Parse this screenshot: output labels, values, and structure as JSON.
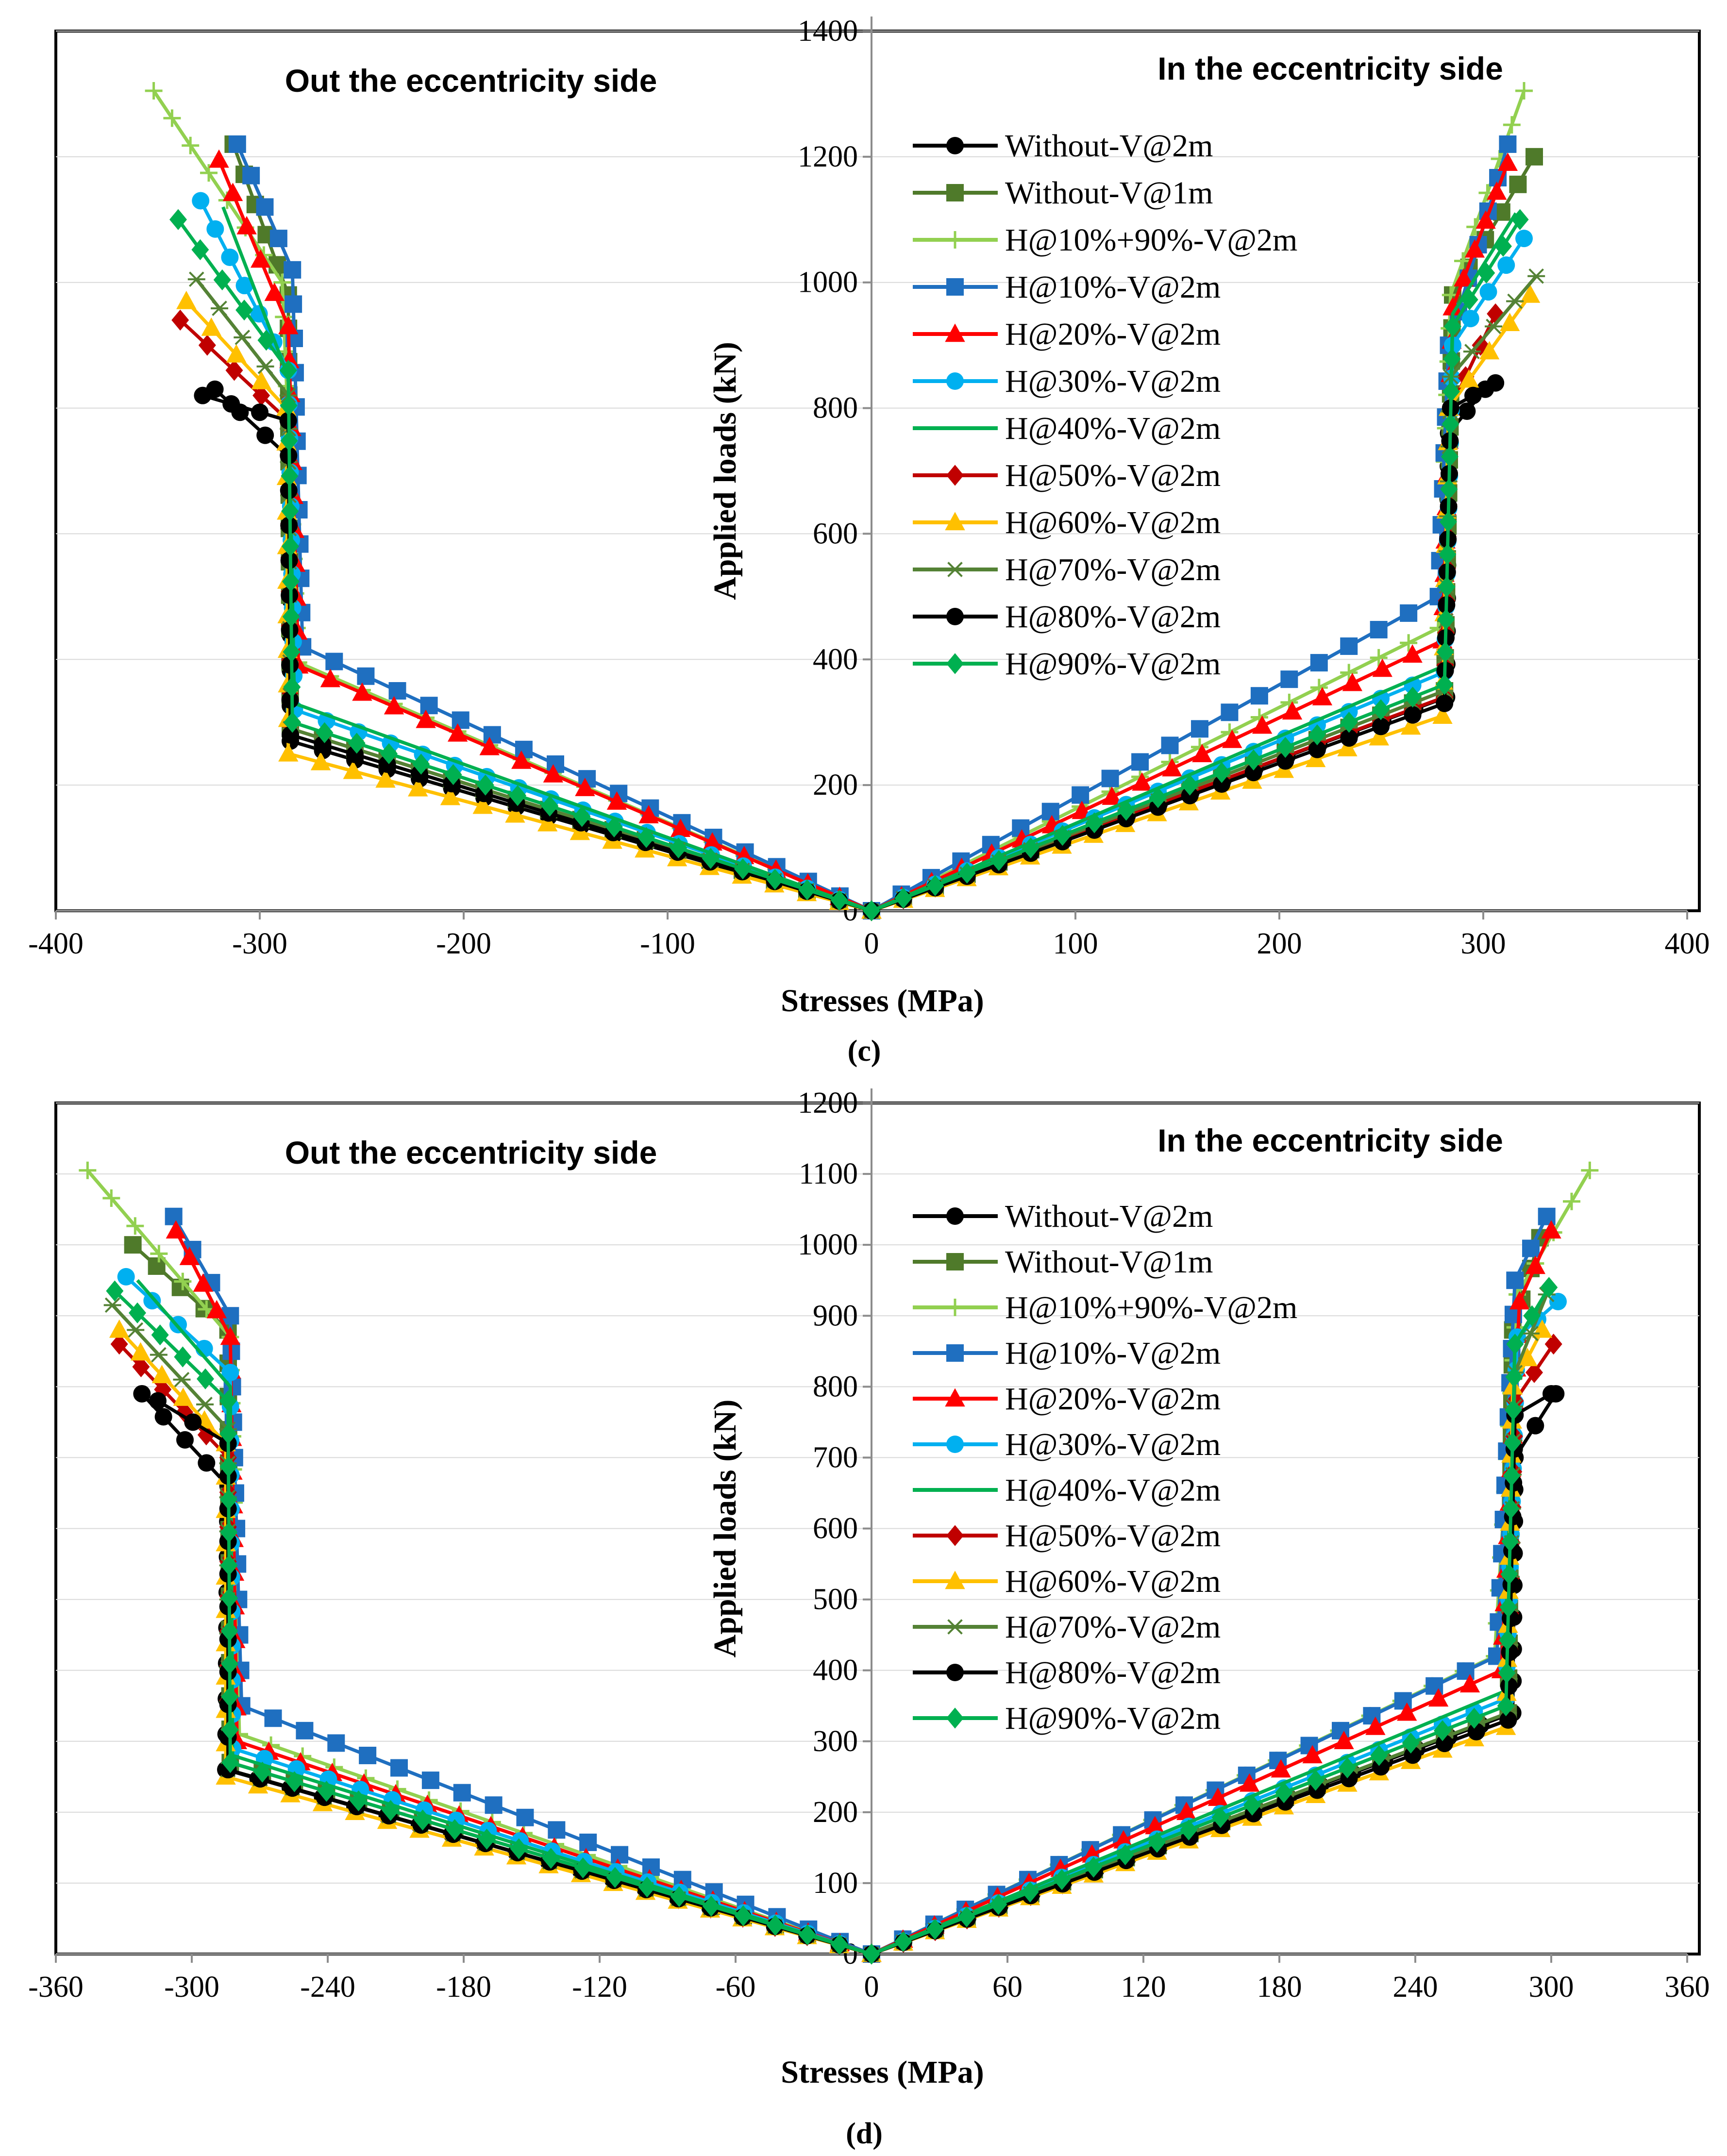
{
  "chart_data": [
    {
      "panel_label": "(c)",
      "type": "line",
      "xlabel": "Stresses (MPa)",
      "ylabel": "Applied loads (kN)",
      "xlim": [
        -400,
        400
      ],
      "ylim": [
        0,
        1400
      ],
      "xticks": [
        -400,
        -300,
        -200,
        -100,
        0,
        100,
        200,
        300,
        400
      ],
      "yticks": [
        0,
        200,
        400,
        600,
        800,
        1000,
        1200,
        1400
      ],
      "left_label": "Out the eccentricity side",
      "right_label": "In the eccentricity side",
      "legend_position": "right",
      "series": [
        {
          "name": "Without-V@2m",
          "color": "#000000",
          "marker": "circle",
          "left": [
            [
              0,
              0
            ],
            [
              -285,
              270
            ],
            [
              -285,
              720
            ],
            [
              -322,
              830
            ]
          ],
          "right": [
            [
              0,
              0
            ],
            [
              282,
              340
            ],
            [
              283,
              760
            ],
            [
              301,
              830
            ]
          ]
        },
        {
          "name": "Without-V@1m",
          "color": "#4f7a2a",
          "marker": "square",
          "left": [
            [
              0,
              0
            ],
            [
              -285,
              290
            ],
            [
              -286,
              980
            ],
            [
              -313,
              1220
            ]
          ],
          "right": [
            [
              0,
              0
            ],
            [
              281,
              350
            ],
            [
              285,
              980
            ],
            [
              325,
              1200
            ]
          ]
        },
        {
          "name": "H@10%+90%-V@2m",
          "color": "#92d050",
          "marker": "plus",
          "left": [
            [
              0,
              0
            ],
            [
              -281,
              395
            ],
            [
              -289,
              1000
            ],
            [
              -352,
              1305
            ]
          ],
          "right": [
            [
              0,
              0
            ],
            [
              278,
              450
            ],
            [
              284,
              980
            ],
            [
              320,
              1305
            ]
          ]
        },
        {
          "name": "H@10%-V@2m",
          "color": "#1f6fc0",
          "marker": "square",
          "left": [
            [
              0,
              0
            ],
            [
              -279,
              420
            ],
            [
              -284,
              1020
            ],
            [
              -311,
              1220
            ]
          ],
          "right": [
            [
              0,
              0
            ],
            [
              278,
              500
            ],
            [
              283,
              900
            ],
            [
              312,
              1220
            ]
          ]
        },
        {
          "name": "H@20%-V@2m",
          "color": "#ff0000",
          "marker": "triangle",
          "left": [
            [
              0,
              0
            ],
            [
              -281,
              390
            ],
            [
              -286,
              930
            ],
            [
              -320,
              1195
            ]
          ],
          "right": [
            [
              0,
              0
            ],
            [
              280,
              430
            ],
            [
              285,
              960
            ],
            [
              312,
              1190
            ]
          ]
        },
        {
          "name": "H@30%-V@2m",
          "color": "#00b0f0",
          "marker": "circle",
          "left": [
            [
              0,
              0
            ],
            [
              -283,
              320
            ],
            [
              -286,
              860
            ],
            [
              -329,
              1130
            ]
          ],
          "right": [
            [
              0,
              0
            ],
            [
              281,
              380
            ],
            [
              285,
              900
            ],
            [
              320,
              1070
            ]
          ]
        },
        {
          "name": "H@40%-V@2m",
          "color": "#00b050",
          "marker": "none",
          "left": [
            [
              0,
              0
            ],
            [
              -283,
              330
            ],
            [
              -286,
              850
            ],
            [
              -318,
              1120
            ]
          ],
          "right": [
            [
              0,
              0
            ],
            [
              281,
              390
            ],
            [
              285,
              950
            ],
            [
              316,
              1110
            ]
          ]
        },
        {
          "name": "H@50%-V@2m",
          "color": "#c00000",
          "marker": "diamond",
          "left": [
            [
              0,
              0
            ],
            [
              -285,
              290
            ],
            [
              -286,
              780
            ],
            [
              -339,
              940
            ]
          ],
          "right": [
            [
              0,
              0
            ],
            [
              281,
              340
            ],
            [
              284,
              800
            ],
            [
              306,
              950
            ]
          ]
        },
        {
          "name": "H@60%-V@2m",
          "color": "#ffc000",
          "marker": "triangle",
          "left": [
            [
              0,
              0
            ],
            [
              -286,
              250
            ],
            [
              -287,
              800
            ],
            [
              -336,
              970
            ]
          ],
          "right": [
            [
              0,
              0
            ],
            [
              280,
              310
            ],
            [
              283,
              800
            ],
            [
              323,
              980
            ]
          ]
        },
        {
          "name": "H@70%-V@2m",
          "color": "#548235",
          "marker": "star",
          "left": [
            [
              0,
              0
            ],
            [
              -285,
              290
            ],
            [
              -286,
              820
            ],
            [
              -331,
              1005
            ]
          ],
          "right": [
            [
              0,
              0
            ],
            [
              281,
              350
            ],
            [
              284,
              850
            ],
            [
              326,
              1010
            ]
          ]
        },
        {
          "name": "H@80%-V@2m",
          "color": "#000000",
          "marker": "circle",
          "left": [
            [
              0,
              0
            ],
            [
              -285,
              280
            ],
            [
              -286,
              780
            ],
            [
              -328,
              820
            ]
          ],
          "right": [
            [
              0,
              0
            ],
            [
              281,
              330
            ],
            [
              284,
              800
            ],
            [
              306,
              840
            ]
          ]
        },
        {
          "name": "H@90%-V@2m",
          "color": "#00b050",
          "marker": "diamond",
          "left": [
            [
              0,
              0
            ],
            [
              -284,
              300
            ],
            [
              -286,
              860
            ],
            [
              -340,
              1100
            ]
          ],
          "right": [
            [
              0,
              0
            ],
            [
              281,
              360
            ],
            [
              285,
              930
            ],
            [
              318,
              1100
            ]
          ]
        }
      ]
    },
    {
      "panel_label": "(d)",
      "type": "line",
      "xlabel": "Stresses (MPa)",
      "ylabel": "Applied loads (kN)",
      "xlim": [
        -360,
        360
      ],
      "ylim": [
        0,
        1200
      ],
      "xticks": [
        -360,
        -300,
        -240,
        -180,
        -120,
        -60,
        0,
        60,
        120,
        180,
        240,
        300,
        360
      ],
      "yticks": [
        0,
        100,
        200,
        300,
        400,
        500,
        600,
        700,
        800,
        900,
        1000,
        1100,
        1200
      ],
      "left_label": "Out the eccentricity side",
      "right_label": "In the eccentricity side",
      "legend_position": "right",
      "series": [
        {
          "name": "Without-V@2m",
          "color": "#000000",
          "marker": "circle",
          "left": [
            [
              0,
              0
            ],
            [
              -285,
              260
            ],
            [
              -284,
              660
            ],
            [
              -322,
              790
            ]
          ],
          "right": [
            [
              0,
              0
            ],
            [
              283,
              340
            ],
            [
              284,
              700
            ],
            [
              302,
              790
            ]
          ]
        },
        {
          "name": "Without-V@1m",
          "color": "#4f7a2a",
          "marker": "square",
          "left": [
            [
              0,
              0
            ],
            [
              -283,
              270
            ],
            [
              -284,
              880
            ],
            [
              -326,
              1000
            ]
          ],
          "right": [
            [
              0,
              0
            ],
            [
              281,
              340
            ],
            [
              283,
              880
            ],
            [
              295,
              1010
            ]
          ]
        },
        {
          "name": "H@10%+90%-V@2m",
          "color": "#92d050",
          "marker": "plus",
          "left": [
            [
              0,
              0
            ],
            [
              -279,
              310
            ],
            [
              -283,
              870
            ],
            [
              -346,
              1105
            ]
          ],
          "right": [
            [
              0,
              0
            ],
            [
              275,
              420
            ],
            [
              285,
              930
            ],
            [
              317,
              1105
            ]
          ]
        },
        {
          "name": "H@10%-V@2m",
          "color": "#1f6fc0",
          "marker": "square",
          "left": [
            [
              0,
              0
            ],
            [
              -278,
              350
            ],
            [
              -283,
              900
            ],
            [
              -308,
              1040
            ]
          ],
          "right": [
            [
              0,
              0
            ],
            [
              276,
              420
            ],
            [
              284,
              950
            ],
            [
              298,
              1040
            ]
          ]
        },
        {
          "name": "H@20%-V@2m",
          "color": "#ff0000",
          "marker": "triangle",
          "left": [
            [
              0,
              0
            ],
            [
              -280,
              300
            ],
            [
              -283,
              870
            ],
            [
              -307,
              1020
            ]
          ],
          "right": [
            [
              0,
              0
            ],
            [
              278,
              400
            ],
            [
              286,
              920
            ],
            [
              300,
              1020
            ]
          ]
        },
        {
          "name": "H@30%-V@2m",
          "color": "#00b0f0",
          "marker": "circle",
          "left": [
            [
              0,
              0
            ],
            [
              -282,
              290
            ],
            [
              -283,
              820
            ],
            [
              -329,
              955
            ]
          ],
          "right": [
            [
              0,
              0
            ],
            [
              280,
              360
            ],
            [
              285,
              870
            ],
            [
              303,
              920
            ]
          ]
        },
        {
          "name": "H@40%-V@2m",
          "color": "#00b050",
          "marker": "none",
          "left": [
            [
              0,
              0
            ],
            [
              -282,
              280
            ],
            [
              -283,
              800
            ],
            [
              -324,
              950
            ]
          ],
          "right": [
            [
              0,
              0
            ],
            [
              279,
              370
            ],
            [
              284,
              860
            ],
            [
              300,
              940
            ]
          ]
        },
        {
          "name": "H@50%-V@2m",
          "color": "#c00000",
          "marker": "diamond",
          "left": [
            [
              0,
              0
            ],
            [
              -284,
              260
            ],
            [
              -284,
              700
            ],
            [
              -332,
              860
            ]
          ],
          "right": [
            [
              0,
              0
            ],
            [
              281,
              330
            ],
            [
              284,
              780
            ],
            [
              301,
              860
            ]
          ]
        },
        {
          "name": "H@60%-V@2m",
          "color": "#ffc000",
          "marker": "triangle",
          "left": [
            [
              0,
              0
            ],
            [
              -285,
              250
            ],
            [
              -285,
              720
            ],
            [
              -332,
              880
            ]
          ],
          "right": [
            [
              0,
              0
            ],
            [
              280,
              320
            ],
            [
              283,
              800
            ],
            [
              296,
              880
            ]
          ]
        },
        {
          "name": "H@70%-V@2m",
          "color": "#548235",
          "marker": "star",
          "left": [
            [
              0,
              0
            ],
            [
              -284,
              260
            ],
            [
              -284,
              740
            ],
            [
              -335,
              915
            ]
          ],
          "right": [
            [
              0,
              0
            ],
            [
              281,
              340
            ],
            [
              284,
              820
            ],
            [
              298,
              930
            ]
          ]
        },
        {
          "name": "H@80%-V@2m",
          "color": "#000000",
          "marker": "circle",
          "left": [
            [
              0,
              0
            ],
            [
              -284,
              260
            ],
            [
              -284,
              720
            ],
            [
              -315,
              780
            ]
          ],
          "right": [
            [
              0,
              0
            ],
            [
              281,
              330
            ],
            [
              284,
              760
            ],
            [
              300,
              790
            ]
          ]
        },
        {
          "name": "H@90%-V@2m",
          "color": "#00b050",
          "marker": "diamond",
          "left": [
            [
              0,
              0
            ],
            [
              -283,
              270
            ],
            [
              -284,
              780
            ],
            [
              -334,
              935
            ]
          ],
          "right": [
            [
              0,
              0
            ],
            [
              280,
              350
            ],
            [
              284,
              860
            ],
            [
              299,
              940
            ]
          ]
        }
      ]
    }
  ]
}
